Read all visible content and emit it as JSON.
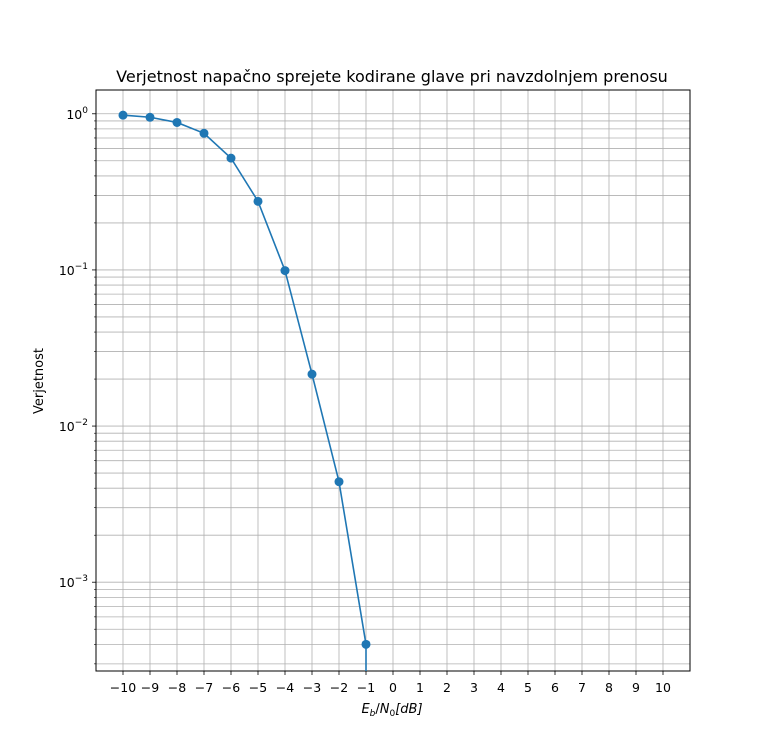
{
  "chart_data": {
    "type": "line",
    "title": "Verjetnost napačno sprejete kodirane glave pri navzdolnjem prenosu",
    "xlabel_parts": {
      "e": "E",
      "b": "b",
      "slash": "/",
      "n": "N",
      "zero": "0",
      "db": "[dB]"
    },
    "ylabel": "Verjetnost",
    "y_scale": "log",
    "xlim": [
      -11.0,
      11.0
    ],
    "ylim": [
      0.00027,
      1.42
    ],
    "grid": true,
    "grid_minor_y": true,
    "line_color": "#1f77b4",
    "x_ticks": [
      -10,
      -9,
      -8,
      -7,
      -6,
      -5,
      -4,
      -3,
      -2,
      -1,
      0,
      1,
      2,
      3,
      4,
      5,
      6,
      7,
      8,
      9,
      10
    ],
    "x_tick_labels": [
      "−10",
      "−9",
      "−8",
      "−7",
      "−6",
      "−5",
      "−4",
      "−3",
      "−2",
      "−1",
      "0",
      "1",
      "2",
      "3",
      "4",
      "5",
      "6",
      "7",
      "8",
      "9",
      "10"
    ],
    "y_ticks": [
      {
        "value": 1,
        "base": "10",
        "exp": "0"
      },
      {
        "value": 0.1,
        "base": "10",
        "exp": "−1"
      },
      {
        "value": 0.01,
        "base": "10",
        "exp": "−2"
      },
      {
        "value": 0.001,
        "base": "10",
        "exp": "−3"
      }
    ],
    "series": [
      {
        "x": [
          -10,
          -9,
          -8,
          -7,
          -6,
          -5,
          -4,
          -3,
          -2,
          -1
        ],
        "y": [
          0.98,
          0.95,
          0.88,
          0.75,
          0.52,
          0.275,
          0.099,
          0.0215,
          0.0044,
          0.0004
        ]
      }
    ],
    "trailing_segment": {
      "from_x": -1,
      "from_y": 0.0004,
      "to_x": -1,
      "to_y": 0.00027
    }
  }
}
